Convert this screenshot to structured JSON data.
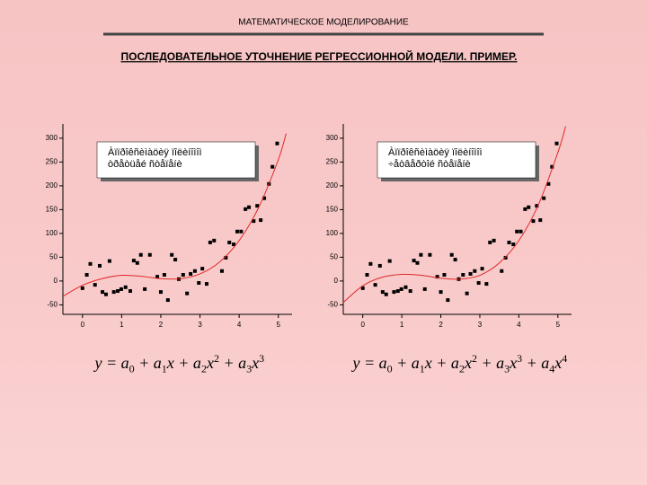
{
  "header": {
    "title": "МАТЕМАТИЧЕСКОЕ МОДЕЛИРОВАНИЕ",
    "subtitle": "ПОСЛЕДОВАТЕЛЬНОЕ УТОЧНЕНИЕ РЕГРЕССИОННОЙ МОДЕЛИ. ПРИМЕР."
  },
  "chart_data": [
    {
      "type": "scatter",
      "legend": [
        "Àïïðîêñèìàöèÿ ïîëèíîìîì",
        "òðåòüåé ñòåïåíè"
      ],
      "xlim": [
        -0.5,
        5.35
      ],
      "ylim": [
        -70,
        330
      ],
      "xticks": [
        0,
        1,
        2,
        3,
        4,
        5
      ],
      "yticks": [
        -50,
        0,
        50,
        100,
        150,
        200,
        250,
        300
      ],
      "series": [
        {
          "type": "scatter",
          "color": "#000000",
          "x": [
            0,
            0.11,
            0.2,
            0.32,
            0.44,
            0.51,
            0.6,
            0.69,
            0.8,
            0.9,
            0.99,
            1.1,
            1.22,
            1.31,
            1.4,
            1.49,
            1.59,
            1.72,
            1.91,
            2,
            2.09,
            2.18,
            2.28,
            2.37,
            2.46,
            2.57,
            2.67,
            2.76,
            2.87,
            2.97,
            3.06,
            3.17,
            3.26,
            3.36,
            3.56,
            3.66,
            3.75,
            3.86,
            3.95,
            4.05,
            4.16,
            4.25,
            4.37,
            4.46,
            4.55,
            4.64,
            4.76,
            4.85,
            4.97
          ],
          "values": [
            -15,
            13,
            36,
            -8,
            32,
            -23,
            -28,
            42,
            -23,
            -21,
            -17,
            -13,
            -21,
            43,
            38,
            55,
            -17,
            55,
            9,
            -23,
            13,
            -40,
            55,
            45,
            4,
            13,
            -26,
            15,
            21,
            -4,
            26,
            -6,
            81,
            85,
            21,
            49,
            81,
            77,
            104,
            104,
            151,
            155,
            126,
            158,
            128,
            174,
            204,
            240,
            289
          ]
        },
        {
          "type": "line",
          "color": "#e02828",
          "x": [
            -0.5,
            0,
            0.5,
            1,
            1.5,
            2,
            2.5,
            3,
            3.5,
            4,
            4.5,
            5,
            5.2
          ],
          "values": [
            -32,
            -9,
            5,
            12,
            10,
            5,
            5,
            15,
            40,
            85,
            155,
            255,
            310
          ]
        }
      ],
      "formula": [
        {
          "t": "y = a"
        },
        {
          "sub": "0"
        },
        {
          "t": " + a"
        },
        {
          "sub": "1"
        },
        {
          "t": "x + a"
        },
        {
          "sub": "2"
        },
        {
          "t": "x"
        },
        {
          "sup": "2"
        },
        {
          "t": " + a"
        },
        {
          "sub": "3"
        },
        {
          "t": "x"
        },
        {
          "sup": "3"
        }
      ]
    },
    {
      "type": "scatter",
      "legend": [
        "Àïïðîêñèìàöèÿ ïîëèíîìîì",
        "÷åòâåðòîé ñòåïåíè"
      ],
      "xlim": [
        -0.5,
        5.35
      ],
      "ylim": [
        -70,
        330
      ],
      "xticks": [
        0,
        1,
        2,
        3,
        4,
        5
      ],
      "yticks": [
        -50,
        0,
        50,
        100,
        150,
        200,
        250,
        300
      ],
      "series": [
        {
          "type": "scatter",
          "color": "#000000",
          "x": [
            0,
            0.11,
            0.2,
            0.32,
            0.44,
            0.51,
            0.6,
            0.69,
            0.8,
            0.9,
            0.99,
            1.1,
            1.22,
            1.31,
            1.4,
            1.49,
            1.59,
            1.72,
            1.91,
            2,
            2.09,
            2.18,
            2.28,
            2.37,
            2.46,
            2.57,
            2.67,
            2.76,
            2.87,
            2.97,
            3.06,
            3.17,
            3.26,
            3.36,
            3.56,
            3.66,
            3.75,
            3.86,
            3.95,
            4.05,
            4.16,
            4.25,
            4.37,
            4.46,
            4.55,
            4.64,
            4.76,
            4.85,
            4.97
          ],
          "values": [
            -15,
            13,
            36,
            -8,
            32,
            -23,
            -28,
            42,
            -23,
            -21,
            -17,
            -13,
            -21,
            43,
            38,
            55,
            -17,
            55,
            9,
            -23,
            13,
            -40,
            55,
            45,
            4,
            13,
            -26,
            15,
            21,
            -4,
            26,
            -6,
            81,
            85,
            21,
            49,
            81,
            77,
            104,
            104,
            151,
            155,
            126,
            158,
            128,
            174,
            204,
            240,
            289
          ]
        },
        {
          "type": "line",
          "color": "#e02828",
          "x": [
            -0.5,
            0,
            0.5,
            1,
            1.5,
            2,
            2.5,
            3,
            3.5,
            4,
            4.5,
            5,
            5.2
          ],
          "values": [
            -45,
            -10,
            8,
            14,
            12,
            6,
            4,
            12,
            38,
            85,
            160,
            270,
            325
          ]
        }
      ],
      "formula": [
        {
          "t": "y = a"
        },
        {
          "sub": "0"
        },
        {
          "t": " + a"
        },
        {
          "sub": "1"
        },
        {
          "t": "x + a"
        },
        {
          "sub": "2"
        },
        {
          "t": "x"
        },
        {
          "sup": "2"
        },
        {
          "t": " + a"
        },
        {
          "sub": "3"
        },
        {
          "t": "x"
        },
        {
          "sup": "3"
        },
        {
          "t": " + a"
        },
        {
          "sub": "4"
        },
        {
          "t": "x"
        },
        {
          "sup": "4"
        }
      ]
    }
  ]
}
